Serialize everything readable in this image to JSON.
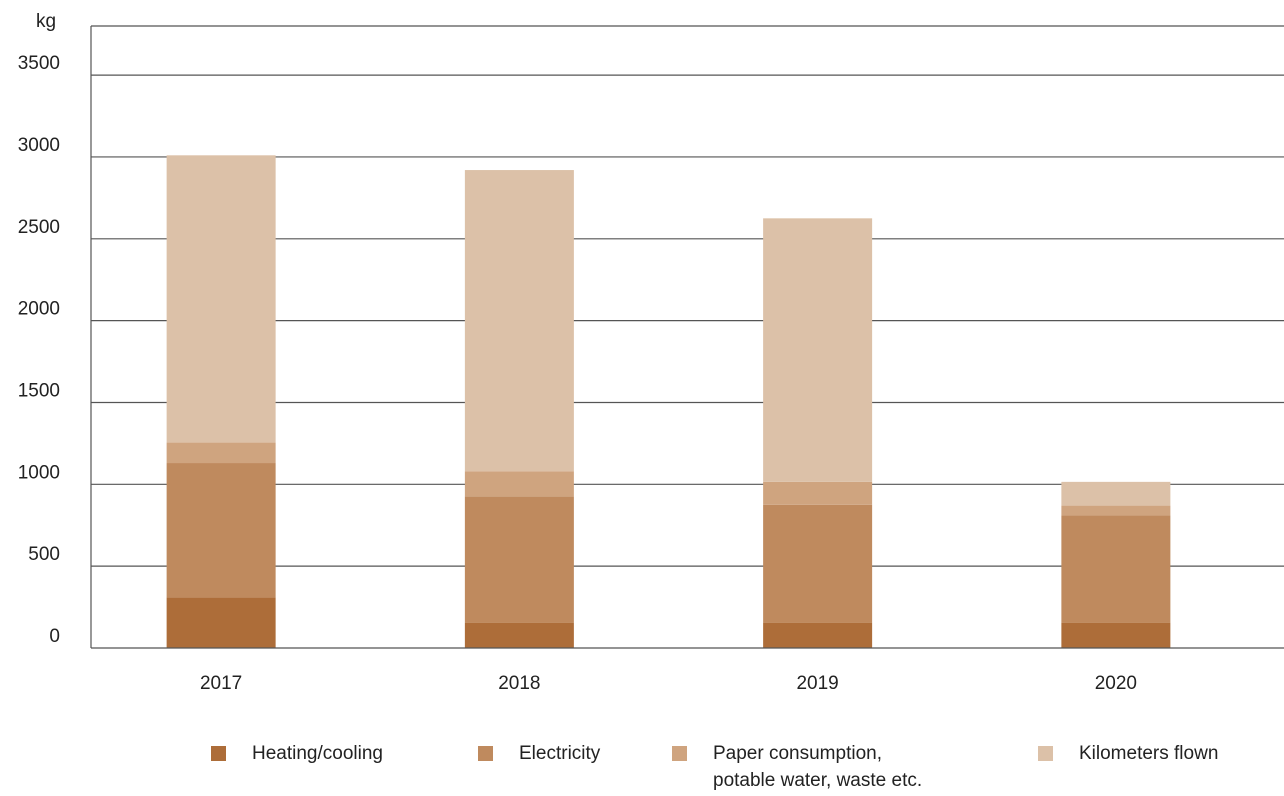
{
  "chart_data": {
    "type": "bar",
    "stacked": true,
    "ylabel": "kg",
    "ylim": [
      0,
      3800
    ],
    "yticks": [
      0,
      500,
      1000,
      1500,
      2000,
      2500,
      3000,
      3500
    ],
    "grid": true,
    "legend_position": "bottom",
    "categories": [
      "2017",
      "2018",
      "2019",
      "2020"
    ],
    "series": [
      {
        "name": "Heating/cooling",
        "color": "#ad6d39",
        "values": [
          310,
          155,
          155,
          155
        ]
      },
      {
        "name": "Electricity",
        "color": "#bf8a5e",
        "values": [
          820,
          770,
          720,
          655
        ]
      },
      {
        "name": "Paper consumption,\npotable water, waste etc.",
        "color": "#cfa47f",
        "values": [
          125,
          155,
          140,
          60
        ]
      },
      {
        "name": "Kilometers flown",
        "color": "#dcc1a8",
        "values": [
          1755,
          1840,
          1610,
          145
        ]
      }
    ]
  }
}
